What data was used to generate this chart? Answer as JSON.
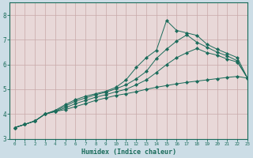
{
  "xlabel": "Humidex (Indice chaleur)",
  "bg_outer": "#ccdde6",
  "bg_inner": "#e8d8d8",
  "grid_color": "#c8a8a8",
  "line_color": "#1a6b5a",
  "spine_color": "#1a6b5a",
  "xlim": [
    -0.5,
    23
  ],
  "ylim": [
    3.0,
    8.5
  ],
  "xticks": [
    0,
    1,
    2,
    3,
    4,
    5,
    6,
    7,
    8,
    9,
    10,
    11,
    12,
    13,
    14,
    15,
    16,
    17,
    18,
    19,
    20,
    21,
    22,
    23
  ],
  "yticks": [
    3,
    4,
    5,
    6,
    7,
    8
  ],
  "series": {
    "line1": [
      3.45,
      3.58,
      3.72,
      4.0,
      4.1,
      4.18,
      4.3,
      4.42,
      4.55,
      4.65,
      4.75,
      4.82,
      4.9,
      5.0,
      5.08,
      5.15,
      5.22,
      5.28,
      5.33,
      5.38,
      5.43,
      5.48,
      5.52,
      5.45
    ],
    "line2": [
      3.45,
      3.58,
      3.72,
      4.0,
      4.1,
      4.25,
      4.42,
      4.55,
      4.68,
      4.78,
      4.9,
      5.0,
      5.18,
      5.38,
      5.68,
      6.0,
      6.28,
      6.48,
      6.65,
      6.48,
      6.38,
      6.22,
      6.1,
      5.45
    ],
    "line3": [
      3.45,
      3.58,
      3.72,
      4.0,
      4.12,
      4.32,
      4.52,
      4.65,
      4.78,
      4.88,
      5.02,
      5.18,
      5.42,
      5.72,
      6.25,
      6.62,
      6.95,
      7.2,
      6.9,
      6.7,
      6.5,
      6.35,
      6.15,
      5.45
    ],
    "line4": [
      3.45,
      3.58,
      3.72,
      4.0,
      4.15,
      4.38,
      4.58,
      4.72,
      4.82,
      4.92,
      5.08,
      5.38,
      5.88,
      6.28,
      6.58,
      7.78,
      7.38,
      7.28,
      7.18,
      6.82,
      6.62,
      6.45,
      6.28,
      5.45
    ]
  }
}
